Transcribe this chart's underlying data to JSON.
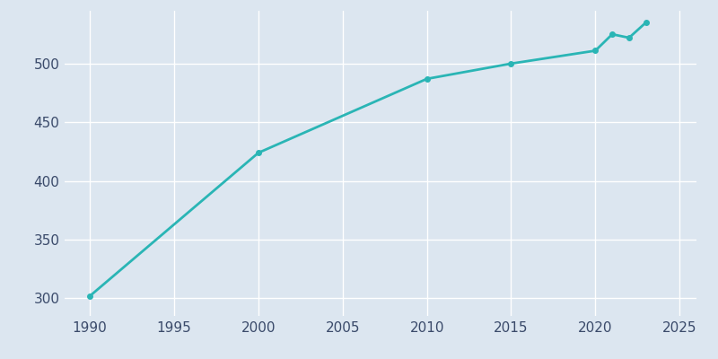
{
  "years": [
    1990,
    2000,
    2010,
    2015,
    2020,
    2021,
    2022,
    2023
  ],
  "population": [
    302,
    424,
    487,
    500,
    511,
    525,
    522,
    535
  ],
  "line_color": "#2ab5b5",
  "marker": "o",
  "marker_size": 4,
  "line_width": 2,
  "background_color": "#dce6f0",
  "plot_bg_color": "#dce6f0",
  "grid_color": "#ffffff",
  "xlim": [
    1988.5,
    2026
  ],
  "ylim": [
    285,
    545
  ],
  "xticks": [
    1990,
    1995,
    2000,
    2005,
    2010,
    2015,
    2020,
    2025
  ],
  "yticks": [
    300,
    350,
    400,
    450,
    500
  ],
  "tick_color": "#3a4a6a",
  "tick_fontsize": 11
}
